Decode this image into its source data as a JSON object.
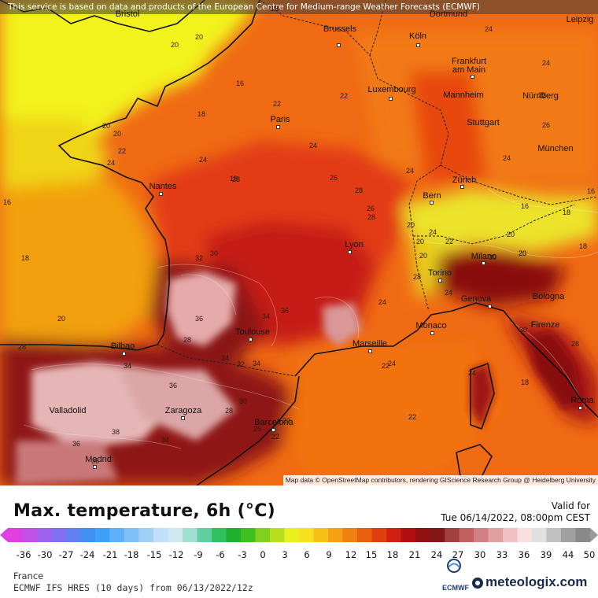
{
  "banner": "This service is based on data and products of the European Centre for Medium-range Weather Forecasts (ECMWF)",
  "attribution": "Map data © OpenStreetMap contributors, rendering GIScience Research Group @ Heidelberg University",
  "title": "Max. temperature, 6h (°C)",
  "valid_label": "Valid for",
  "valid_time": "Tue 06/14/2022, 08:00pm CEST",
  "region": "France",
  "model": "ECMWF IFS HRES (10 days) from 06/13/2022/12z",
  "ecmwf_logo_text": "ECMWF",
  "brand": "meteologix.com",
  "scale_ticks": [
    "-36",
    "-30",
    "-27",
    "-24",
    "-21",
    "-18",
    "-15",
    "-12",
    "-9",
    "-6",
    "-3",
    "0",
    "3",
    "6",
    "9",
    "12",
    "15",
    "18",
    "21",
    "24",
    "27",
    "30",
    "33",
    "36",
    "39",
    "44",
    "50"
  ],
  "cities": [
    {
      "name": "Bristol",
      "id": "bristol"
    },
    {
      "name": "Dortmund",
      "id": "dortmund"
    },
    {
      "name": "Leipzig",
      "id": "leipzig"
    },
    {
      "name": "Brussels",
      "id": "brussels"
    },
    {
      "name": "Köln",
      "id": "koln"
    },
    {
      "name": "Frankfurt am Main",
      "id": "frankfurt"
    },
    {
      "name": "Luxembourg",
      "id": "luxembourg"
    },
    {
      "name": "Mannheim",
      "id": "mannheim"
    },
    {
      "name": "Nürnberg",
      "id": "nurnberg"
    },
    {
      "name": "Paris",
      "id": "paris"
    },
    {
      "name": "Stuttgart",
      "id": "stuttgart"
    },
    {
      "name": "München",
      "id": "munchen"
    },
    {
      "name": "Nantes",
      "id": "nantes"
    },
    {
      "name": "Bern",
      "id": "bern"
    },
    {
      "name": "Zürich",
      "id": "zurich"
    },
    {
      "name": "Lyon",
      "id": "lyon"
    },
    {
      "name": "Milano",
      "id": "milano"
    },
    {
      "name": "Torino",
      "id": "torino"
    },
    {
      "name": "Genova",
      "id": "genova"
    },
    {
      "name": "Bologna",
      "id": "bologna"
    },
    {
      "name": "Monaco",
      "id": "monaco"
    },
    {
      "name": "Firenze",
      "id": "firenze"
    },
    {
      "name": "Toulouse",
      "id": "toulouse"
    },
    {
      "name": "Marseille",
      "id": "marseille"
    },
    {
      "name": "Bilbao",
      "id": "bilbao"
    },
    {
      "name": "Valladolid",
      "id": "valladolid"
    },
    {
      "name": "Zaragoza",
      "id": "zaragoza"
    },
    {
      "name": "Barcelona",
      "id": "barcelona"
    },
    {
      "name": "Roma",
      "id": "roma"
    },
    {
      "name": "Madrid",
      "id": "madrid"
    }
  ],
  "isotherm_labels": [
    "20",
    "16",
    "20",
    "18",
    "18",
    "20",
    "20",
    "22",
    "22",
    "22",
    "24",
    "16",
    "24",
    "18",
    "18",
    "24",
    "26",
    "26",
    "28",
    "28",
    "16",
    "18",
    "20",
    "20",
    "22",
    "20",
    "20",
    "24",
    "30",
    "32",
    "36",
    "34",
    "34",
    "36",
    "28",
    "28",
    "32",
    "30",
    "26",
    "22",
    "22",
    "24",
    "24",
    "20",
    "28",
    "36",
    "34",
    "34",
    "36",
    "36",
    "38",
    "34",
    "28",
    "22",
    "22",
    "24",
    "20",
    "30",
    "20",
    "30",
    "28",
    "28",
    "24",
    "18",
    "16",
    "18",
    "22",
    "24",
    "24",
    "26",
    "24",
    "24"
  ]
}
